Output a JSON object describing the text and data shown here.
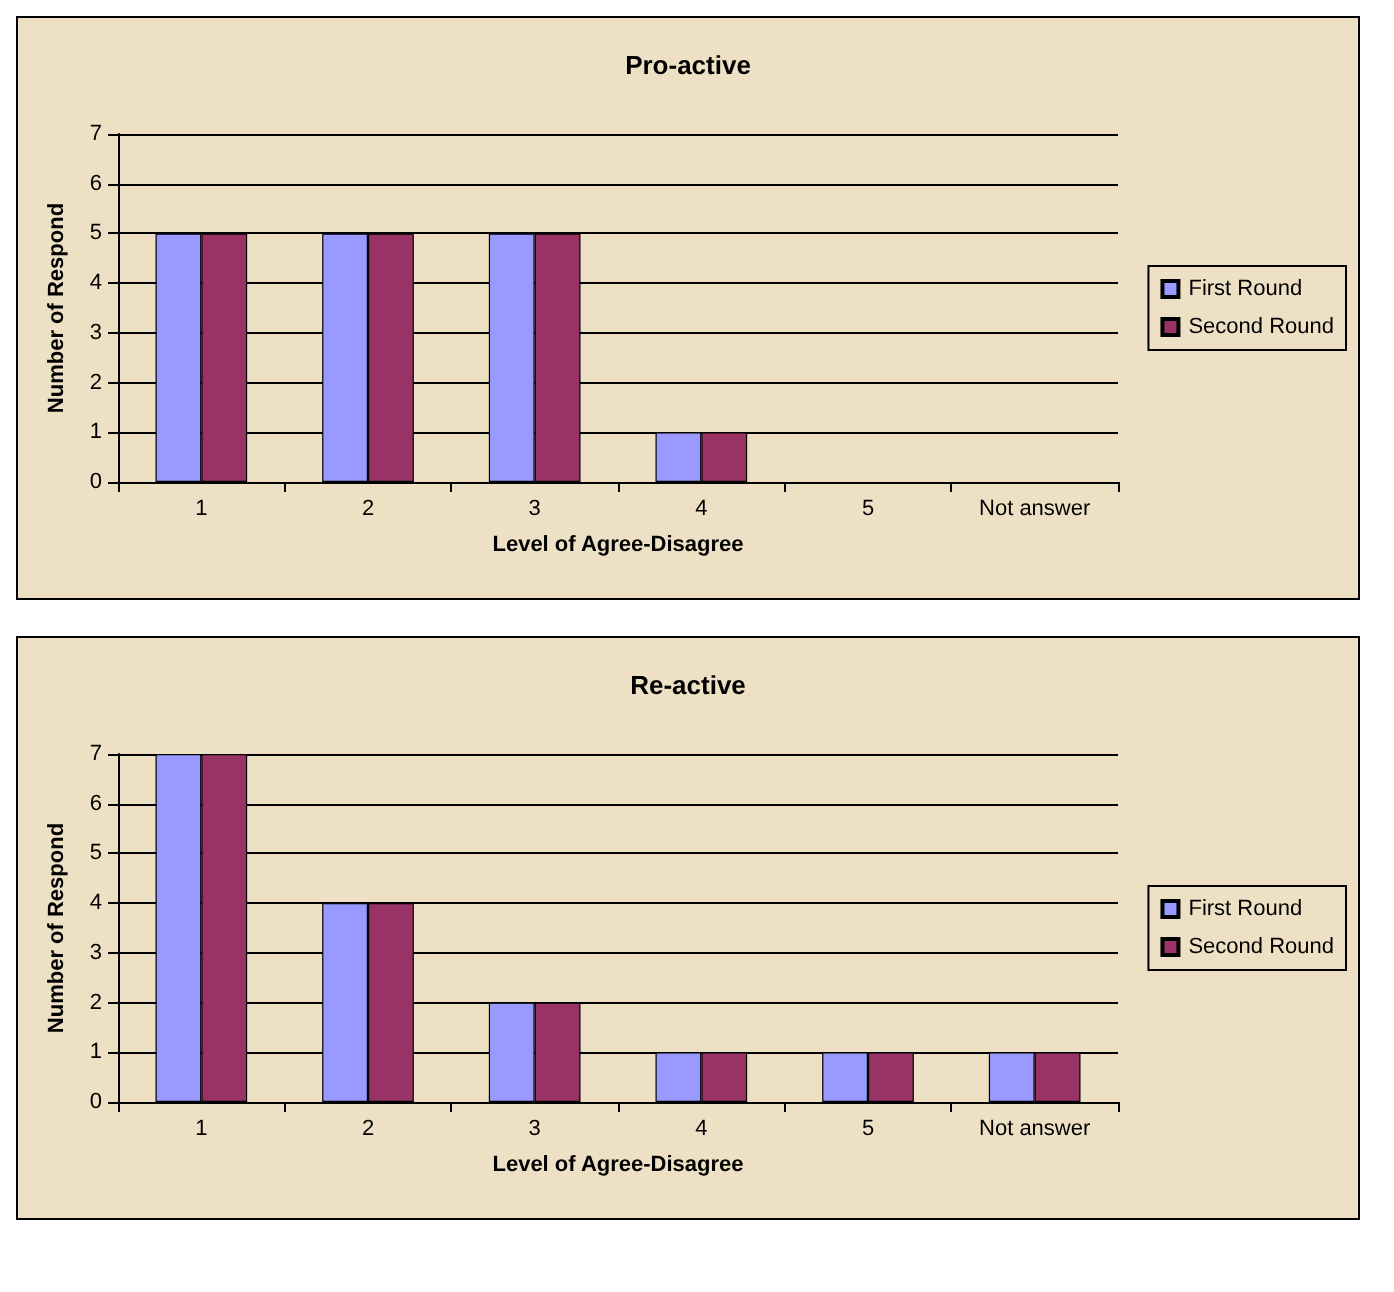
{
  "chart_data": [
    {
      "type": "bar",
      "title": "Pro-active",
      "xlabel": "Level of Agree-Disagree",
      "ylabel": "Number of Respond",
      "categories": [
        "1",
        "2",
        "3",
        "4",
        "5",
        "Not answer"
      ],
      "series": [
        {
          "name": "First Round",
          "color": "#9999ff",
          "values": [
            5,
            5,
            5,
            1,
            0,
            0
          ]
        },
        {
          "name": "Second Round",
          "color": "#993366",
          "values": [
            5,
            5,
            5,
            1,
            0,
            0
          ]
        }
      ],
      "ylim": [
        0,
        7
      ],
      "yticks": [
        0,
        1,
        2,
        3,
        4,
        5,
        6,
        7
      ],
      "grid": "y",
      "legend": "right"
    },
    {
      "type": "bar",
      "title": "Re-active",
      "xlabel": "Level of Agree-Disagree",
      "ylabel": "Number of Respond",
      "categories": [
        "1",
        "2",
        "3",
        "4",
        "5",
        "Not answer"
      ],
      "series": [
        {
          "name": "First Round",
          "color": "#9999ff",
          "values": [
            7,
            4,
            2,
            1,
            1,
            1
          ]
        },
        {
          "name": "Second Round",
          "color": "#993366",
          "values": [
            7,
            4,
            2,
            1,
            1,
            1
          ]
        }
      ],
      "ylim": [
        0,
        7
      ],
      "yticks": [
        0,
        1,
        2,
        3,
        4,
        5,
        6,
        7
      ],
      "grid": "y",
      "legend": "right"
    }
  ]
}
